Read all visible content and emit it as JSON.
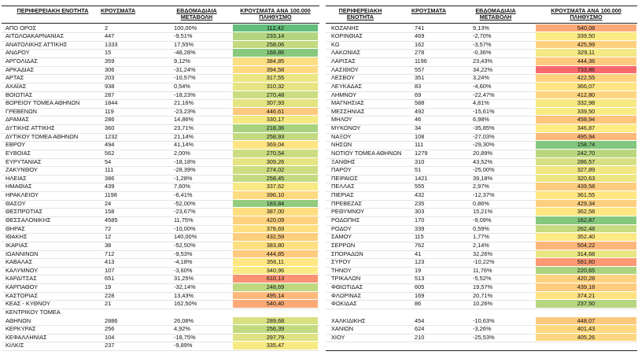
{
  "color_scale": {
    "low": "#63be7b",
    "mid": "#ffeb84",
    "high": "#f8696b"
  },
  "tables": [
    {
      "headers": [
        "ΠΕΡΙΦΕΡΕΙΑΚΗ ΕΝΟΤΗΤΑ",
        "ΚΡΟΥΣΜΑΤΑ",
        "ΕΒΔΟΜΑΔΙΑΙΑ ΜΕΤΑΒΟΛΗ",
        "ΚΡΟΥΣΜΑΤΑ ΑΝΑ 100.000 ΠΛΗΘΥΣΜΟ"
      ],
      "rows": [
        [
          "ΑΠΟ ΟΡΟΣ",
          "2",
          "100,00%",
          "112,42"
        ],
        [
          "ΑΙΤΩΛΟΑΚΑΡΝΑΝΙΑΣ",
          "447",
          "-9,51%",
          "233,14"
        ],
        [
          "ΑΝΑΤΟΛΙΚΗΣ ΑΤΤΙΚΗΣ",
          "1333",
          "17,55%",
          "258,06"
        ],
        [
          "ΑΝΔΡΟΥ",
          "15",
          "-48,28%",
          "168,86"
        ],
        [
          "ΑΡΓΟΛΙΔΑΣ",
          "359",
          "9,12%",
          "384,85"
        ],
        [
          "ΑΡΚΑΔΙΑΣ",
          "306",
          "-31,24%",
          "394,58"
        ],
        [
          "ΑΡΤΑΣ",
          "203",
          "-10,57%",
          "317,55"
        ],
        [
          "ΑΧΑΪΑΣ",
          "938",
          "0,54%",
          "310,32"
        ],
        [
          "ΒΟΙΩΤΙΑΣ",
          "287",
          "-18,23%",
          "270,48"
        ],
        [
          "ΒΟΡΕΙΟΥ ΤΟΜΕΑ ΑΘΗΝΩΝ",
          "1844",
          "21,16%",
          "307,93"
        ],
        [
          "ΓΡΕΒΕΝΩΝ",
          "119",
          "-23,23%",
          "446,61"
        ],
        [
          "ΔΡΑΜΑΣ",
          "286",
          "14,86%",
          "330,17"
        ],
        [
          "ΔΥΤΙΚΗΣ ΑΤΤΙΚΗΣ",
          "360",
          "23,71%",
          "218,36"
        ],
        [
          "ΔΥΤΙΚΟΥ ΤΟΜΕΑ ΑΘΗΝΩΝ",
          "1232",
          "21,14%",
          "258,93"
        ],
        [
          "ΕΒΡΟΥ",
          "494",
          "41,14%",
          "369,04"
        ],
        [
          "ΕΥΒΟΙΑΣ",
          "562",
          "2,00%",
          "270,54"
        ],
        [
          "ΕΥΡΥΤΑΝΙΑΣ",
          "54",
          "-18,18%",
          "309,26"
        ],
        [
          "ΖΑΚΥΝΘΟΥ",
          "111",
          "-28,39%",
          "274,02"
        ],
        [
          "ΗΛΕΙΑΣ",
          "386",
          "-1,28%",
          "258,45"
        ],
        [
          "ΗΜΑΘΙΑΣ",
          "439",
          "7,60%",
          "337,62"
        ],
        [
          "ΗΡΑΚΛΕΙΟΥ",
          "1198",
          "-6,41%",
          "396,10"
        ],
        [
          "ΘΑΣΟΥ",
          "24",
          "-52,00%",
          "183,84"
        ],
        [
          "ΘΕΣΠΡΩΤΙΑΣ",
          "158",
          "-23,67%",
          "387,00"
        ],
        [
          "ΘΕΣΣΑΛΟΝΙΚΗΣ",
          "4585",
          "11,75%",
          "420,09"
        ],
        [
          "ΘΗΡΑΣ",
          "72",
          "-10,00%",
          "378,69"
        ],
        [
          "ΙΘΑΚΗΣ",
          "12",
          "140,00%",
          "432,59"
        ],
        [
          "ΙΚΑΡΙΑΣ",
          "38",
          "-52,50%",
          "383,80"
        ],
        [
          "ΙΩΑΝΝΙΝΩΝ",
          "712",
          "-9,53%",
          "444,85"
        ],
        [
          "ΚΑΒΑΛΑΣ",
          "413",
          "-4,18%",
          "356,11"
        ],
        [
          "ΚΑΛΥΜΝΟΥ",
          "107",
          "-3,60%",
          "340,96"
        ],
        [
          "ΚΑΡΔΙΤΣΑΣ",
          "651",
          "31,25%",
          "610,13"
        ],
        [
          "ΚΑΡΠΑΘΟΥ",
          "19",
          "-32,14%",
          "248,69"
        ],
        [
          "ΚΑΣΤΟΡΙΑΣ",
          "228",
          "13,43%",
          "495,14"
        ],
        [
          "ΚΕΑΣ - ΚΥΘΝΟΥ",
          "21",
          "162,50%",
          "540,40"
        ],
        [
          "ΚΕΝΤΡΙΚΟΥ ΤΟΜΕΑ ΑΘΗΝΩΝ",
          "2886",
          "26,08%",
          "289,68"
        ],
        [
          "ΚΕΡΚΥΡΑΣ",
          "256",
          "4,92%",
          "256,39"
        ],
        [
          "ΚΕΦΑΛΛΗΝΙΑΣ",
          "104",
          "-18,75%",
          "297,79"
        ],
        [
          "ΚΙΛΚΙΣ",
          "237",
          "-9,89%",
          "335,47"
        ]
      ]
    },
    {
      "headers": [
        "ΠΕΡΙΦΕΡΕΙΑΚΗ ΕΝΟΤΗΤΑ",
        "ΚΡΟΥΣΜΑΤΑ",
        "ΕΒΔΟΜΑΔΙΑΙΑ ΜΕΤΑΒΟΛΗ",
        "ΚΡΟΥΣΜΑΤΑ ΑΝΑ 100.000 ΠΛΗΘΥΣΜΟ"
      ],
      "rows": [
        [
          "ΚΟΖΑΝΗΣ",
          "741",
          "9,13%",
          "540,08"
        ],
        [
          "ΚΟΡΙΝΘΙΑΣ",
          "469",
          "-2,70%",
          "339,50"
        ],
        [
          "ΚΩ",
          "162",
          "-3,57%",
          "425,99"
        ],
        [
          "ΛΑΚΩΝΙΑΣ",
          "278",
          "-0,36%",
          "329,11"
        ],
        [
          "ΛΑΡΙΣΑΣ",
          "1196",
          "23,43%",
          "444,36"
        ],
        [
          "ΛΑΣΙΘΙΟΥ",
          "557",
          "34,22%",
          "733,86"
        ],
        [
          "ΛΕΣΒΟΥ",
          "351",
          "3,24%",
          "422,55"
        ],
        [
          "ΛΕΥΚΑΔΑΣ",
          "83",
          "-4,60%",
          "366,07"
        ],
        [
          "ΛΗΜΝΟΥ",
          "69",
          "-22,47%",
          "412,80"
        ],
        [
          "ΜΑΓΝΗΣΙΑΣ",
          "588",
          "4,81%",
          "332,98"
        ],
        [
          "ΜΕΣΣΗΝΙΑΣ",
          "492",
          "-15,61%",
          "339,50"
        ],
        [
          "ΜΗΛΟΥ",
          "46",
          "6,98%",
          "458,94"
        ],
        [
          "ΜΥΚΟΝΟΥ",
          "34",
          "-35,85%",
          "346,87"
        ],
        [
          "ΝΑΞΟΥ",
          "108",
          "-27,03%",
          "495,94"
        ],
        [
          "ΝΗΣΩΝ",
          "111",
          "-29,30%",
          "158,74"
        ],
        [
          "ΝΟΤΙΟΥ ΤΟΜΕΑ ΑΘΗΝΩΝ",
          "1279",
          "20,89%",
          "242,70"
        ],
        [
          "ΞΑΝΘΗΣ",
          "310",
          "43,52%",
          "286,57"
        ],
        [
          "ΠΑΡΟΥ",
          "51",
          "-25,00%",
          "327,89"
        ],
        [
          "ΠΕΙΡΑΙΩΣ",
          "1421",
          "39,18%",
          "320,63"
        ],
        [
          "ΠΕΛΛΑΣ",
          "555",
          "2,97%",
          "439,58"
        ],
        [
          "ΠΙΕΡΙΑΣ",
          "432",
          "-12,37%",
          "361,55"
        ],
        [
          "ΠΡΕΒΕΖΑΣ",
          "235",
          "0,86%",
          "429,34"
        ],
        [
          "ΡΕΘΥΜΝΟΥ",
          "303",
          "15,21%",
          "362,58"
        ],
        [
          "ΡΟΔΟΠΗΣ",
          "170",
          "-9,09%",
          "162,87"
        ],
        [
          "ΡΟΔΟΥ",
          "339",
          "0,59%",
          "262,48"
        ],
        [
          "ΣΑΜΟΥ",
          "115",
          "1,77%",
          "352,40"
        ],
        [
          "ΣΕΡΡΩΝ",
          "762",
          "2,14%",
          "504,22"
        ],
        [
          "ΣΠΟΡΑΔΩΝ",
          "41",
          "32,26%",
          "314,68"
        ],
        [
          "ΣΥΡΟΥ",
          "123",
          "-10,22%",
          "591,60"
        ],
        [
          "ΤΗΝΟΥ",
          "19",
          "11,76%",
          "220,65"
        ],
        [
          "ΤΡΙΚΑΛΩΝ",
          "513",
          "-5,52%",
          "420,28"
        ],
        [
          "ΦΘΙΩΤΙΔΑΣ",
          "605",
          "19,57%",
          "439,18"
        ],
        [
          "ΦΛΩΡΙΝΑΣ",
          "169",
          "20,71%",
          "374,21"
        ],
        [
          "ΦΩΚΙΔΑΣ",
          "86",
          "10,26%",
          "237,50"
        ],
        [
          "ΧΑΛΚΙΔΙΚΗΣ",
          "454",
          "-10,63%",
          "448,07"
        ],
        [
          "ΧΑΝΙΩΝ",
          "624",
          "-3,26%",
          "401,43"
        ],
        [
          "ΧΙΟΥ",
          "210",
          "-25,53%",
          "405,26"
        ]
      ]
    }
  ]
}
